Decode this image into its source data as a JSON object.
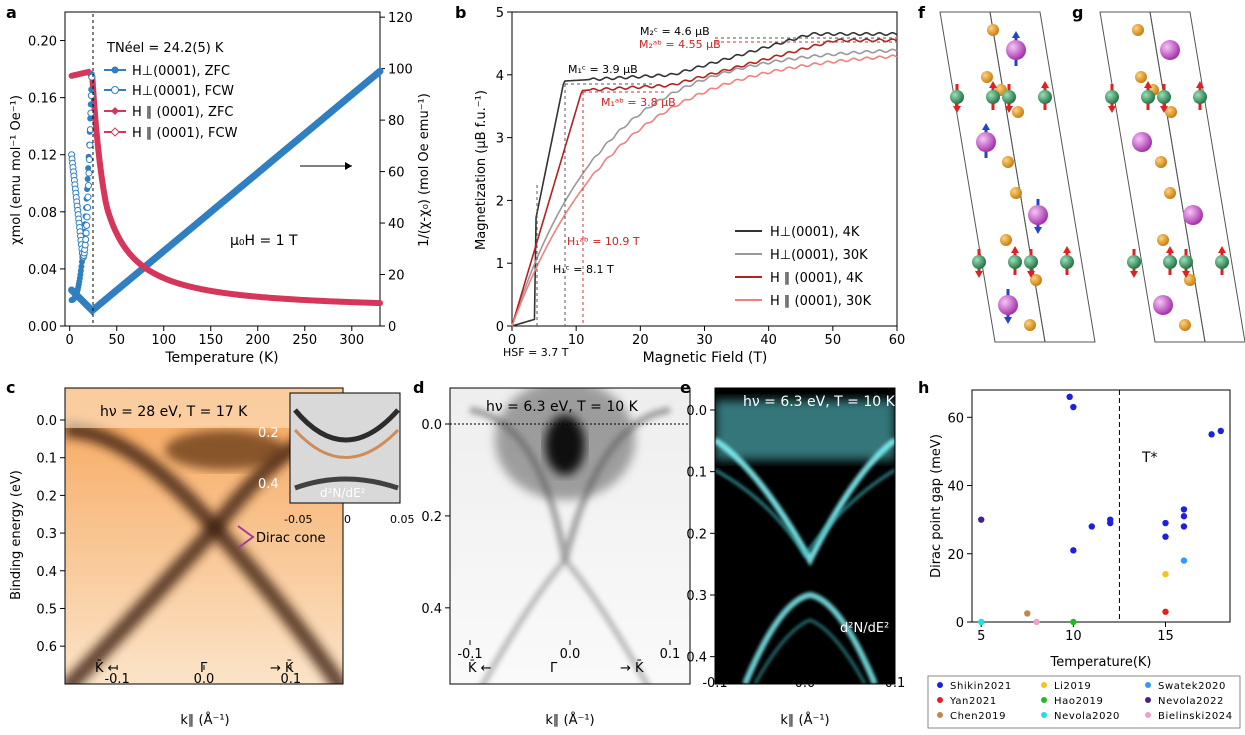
{
  "figure": {
    "panel_labels": [
      "a",
      "b",
      "c",
      "d",
      "e",
      "f",
      "g",
      "h"
    ]
  },
  "colors": {
    "blue": "#2f7fc1",
    "blue_light": "#3f8fd0",
    "red": "#d6365a",
    "dark": "#333333",
    "grey": "#999999",
    "dark_red": "#b22222",
    "light_red": "#f08080",
    "arpes_orange": "#f39a3c",
    "cyan": "#33e0e8",
    "green_atom": "#2e8b57",
    "orange_atom": "#e89b1e",
    "magenta_atom": "#cc55cc"
  },
  "chart_data": [
    {
      "panel": "a",
      "type": "scatter",
      "title": "",
      "xlabel": "Temperature (K)",
      "ylabel": "χmol (emu mol⁻¹ Oe⁻¹)",
      "ylabel_right": "1/(χ-χ₀) (mol Oe emu⁻¹)",
      "xlim": [
        -5,
        330
      ],
      "ylim": [
        0,
        0.22
      ],
      "ylim_right": [
        0,
        122
      ],
      "xticks": [
        0,
        50,
        100,
        150,
        200,
        250,
        300
      ],
      "yticks": [
        0.0,
        0.04,
        0.08,
        0.12,
        0.16,
        0.2
      ],
      "yticks_right": [
        0,
        20,
        40,
        60,
        80,
        100,
        120
      ],
      "annotation_neel": "TNéel = 24.2(5) K",
      "annotation_field": "μ₀H = 1 T",
      "neel_temperature": 24.2,
      "legend": [
        "H⊥(0001), ZFC",
        "H⊥(0001), FCW",
        "H ∥ (0001), ZFC",
        "H ∥ (0001), FCW"
      ],
      "series": [
        {
          "name": "H⊥(0001), ZFC",
          "x": [
            2,
            5,
            10,
            15,
            20,
            24
          ],
          "y": [
            0.018,
            0.02,
            0.028,
            0.048,
            0.12,
            0.19
          ]
        },
        {
          "name": "H⊥(0001), FCW",
          "x": [
            2,
            5,
            10,
            15,
            20,
            24
          ],
          "y": [
            0.12,
            0.1,
            0.07,
            0.05,
            0.13,
            0.19
          ]
        },
        {
          "name": "H ∥ (0001), ZFC",
          "x": [
            2,
            10,
            20,
            24,
            30,
            50,
            80,
            120,
            200,
            330
          ],
          "y": [
            0.175,
            0.176,
            0.178,
            0.175,
            0.12,
            0.078,
            0.048,
            0.032,
            0.02,
            0.012
          ]
        },
        {
          "name": "H ∥ (0001), FCW",
          "x": [
            2,
            10,
            20,
            24
          ],
          "y": [
            0.175,
            0.176,
            0.178,
            0.175
          ]
        },
        {
          "name": "1/(χ-χ₀)",
          "axis": "right",
          "x": [
            2,
            10,
            20,
            24,
            50,
            100,
            200,
            330
          ],
          "y": [
            14,
            10,
            7,
            6,
            17,
            38,
            62,
            99
          ]
        }
      ]
    },
    {
      "panel": "b",
      "type": "line",
      "xlabel": "Magnetic Field (T)",
      "ylabel": "Magnetization (μB f.u.⁻¹)",
      "xlim": [
        0,
        60
      ],
      "ylim": [
        0,
        5
      ],
      "xticks": [
        0,
        10,
        20,
        30,
        40,
        50,
        60
      ],
      "yticks": [
        0,
        1,
        2,
        3,
        4,
        5
      ],
      "annotations": [
        "M₂ᶜ = 4.6 μB",
        "M₂ᵃᵇ = 4.55 μB",
        "M₁ᶜ = 3.9 μB",
        "M₁ᵃᵇ = 3.8 μB",
        "H₁ᵃᵇ = 10.9 T",
        "H₁ᶜ = 8.1 T",
        "HSF = 3.7 T"
      ],
      "legend": [
        "H⊥(0001), 4K",
        "H⊥(0001), 30K",
        "H ∥ (0001), 4K",
        "H ∥ (0001), 30K"
      ],
      "series": [
        {
          "name": "H⊥(0001), 4K",
          "x": [
            0,
            3.7,
            4,
            8.1,
            15,
            25,
            30,
            40,
            50,
            60
          ],
          "y": [
            0,
            0.1,
            1.7,
            3.9,
            3.92,
            4.05,
            4.3,
            4.5,
            4.6,
            4.65
          ]
        },
        {
          "name": "H⊥(0001), 30K",
          "x": [
            0,
            5,
            10,
            15,
            20,
            30,
            40,
            50,
            60
          ],
          "y": [
            0,
            1.3,
            2.1,
            2.7,
            3.1,
            3.6,
            3.95,
            4.15,
            4.3
          ]
        },
        {
          "name": "H ∥ (0001), 4K",
          "x": [
            0,
            10.9,
            15,
            25,
            30,
            40,
            50,
            60
          ],
          "y": [
            0,
            3.75,
            3.78,
            3.85,
            4.1,
            4.35,
            4.5,
            4.55
          ]
        },
        {
          "name": "H ∥ (0001), 30K",
          "x": [
            0,
            5,
            10,
            15,
            20,
            30,
            40,
            50,
            60
          ],
          "y": [
            0,
            1.1,
            1.85,
            2.4,
            2.85,
            3.4,
            3.8,
            4.05,
            4.25
          ]
        }
      ]
    },
    {
      "panel": "c",
      "type": "heatmap",
      "title": "hν = 28 eV, T = 17 K",
      "xlabel": "k∥ (Å⁻¹)",
      "ylabel": "Binding energy (eV)",
      "xlim": [
        -0.16,
        0.16
      ],
      "ylim": [
        0.0,
        0.65
      ],
      "xticks": [
        -0.1,
        0.0,
        0.1
      ],
      "yticks": [
        0.0,
        0.1,
        0.2,
        0.3,
        0.4,
        0.5,
        0.6
      ],
      "annotation": "Dirac cone",
      "k_labels": [
        "K̄ ←",
        "Γ̄",
        "→ K̄"
      ],
      "inset": {
        "label": "d²N/dE²",
        "xticks": [
          -0.05,
          0.0,
          0.05
        ],
        "yticks": [
          0.2,
          0.4
        ]
      }
    },
    {
      "panel": "d",
      "type": "heatmap",
      "title": "hν = 6.3 eV, T = 10 K",
      "xlabel": "k∥ (Å⁻¹)",
      "xlim": [
        -0.12,
        0.12
      ],
      "ylim": [
        0.0,
        0.47
      ],
      "xticks": [
        -0.1,
        0.0,
        0.1
      ],
      "yticks": [
        0.0,
        0.2,
        0.4
      ],
      "k_labels": [
        "K̄ ←",
        "Γ̄",
        "→ K̄"
      ]
    },
    {
      "panel": "e",
      "type": "heatmap",
      "title": "hν = 6.3 eV, T = 10 K",
      "xlabel": "k∥ (Å⁻¹)",
      "xlim": [
        -0.1,
        0.1
      ],
      "ylim": [
        0.0,
        0.42
      ],
      "xticks": [
        -0.1,
        0.0,
        0.1
      ],
      "yticks": [
        0.0,
        0.1,
        0.2,
        0.3,
        0.4
      ],
      "annotation": "d²N/dE²"
    },
    {
      "panel": "h",
      "type": "scatter",
      "xlabel": "Temperature(K)",
      "ylabel": "Dirac point gap (meV)",
      "xlim": [
        4.5,
        18.5
      ],
      "ylim": [
        0,
        68
      ],
      "xticks": [
        5,
        10,
        15
      ],
      "yticks": [
        0,
        20,
        40,
        60
      ],
      "annotation": "T*",
      "t_star": 12.5,
      "series": [
        {
          "name": "Shikin2021",
          "color": "#1f1fdf",
          "x": [
            9.8,
            10,
            10,
            11,
            12,
            12,
            15,
            15,
            16,
            16,
            16,
            17.5,
            18
          ],
          "y": [
            66,
            63,
            21,
            28,
            29,
            30,
            29,
            25,
            33,
            31,
            28,
            55,
            56
          ]
        },
        {
          "name": "Yan2021",
          "color": "#e62020",
          "x": [
            15
          ],
          "y": [
            3
          ]
        },
        {
          "name": "Chen2019",
          "color": "#c08850",
          "x": [
            7.5
          ],
          "y": [
            2.5
          ]
        },
        {
          "name": "Li2019",
          "color": "#f5c518",
          "x": [
            15
          ],
          "y": [
            14
          ]
        },
        {
          "name": "Hao2019",
          "color": "#22bb22",
          "x": [
            10
          ],
          "y": [
            0
          ]
        },
        {
          "name": "Nevola2020",
          "color": "#20dfdf",
          "x": [
            5
          ],
          "y": [
            0
          ]
        },
        {
          "name": "Swatek2020",
          "color": "#3399ff",
          "x": [
            16
          ],
          "y": [
            18
          ]
        },
        {
          "name": "Nevola2022",
          "color": "#442288",
          "x": [
            5
          ],
          "y": [
            30
          ]
        },
        {
          "name": "Bielinski2024",
          "color": "#f0a0c8",
          "x": [
            8
          ],
          "y": [
            0
          ]
        }
      ]
    }
  ]
}
